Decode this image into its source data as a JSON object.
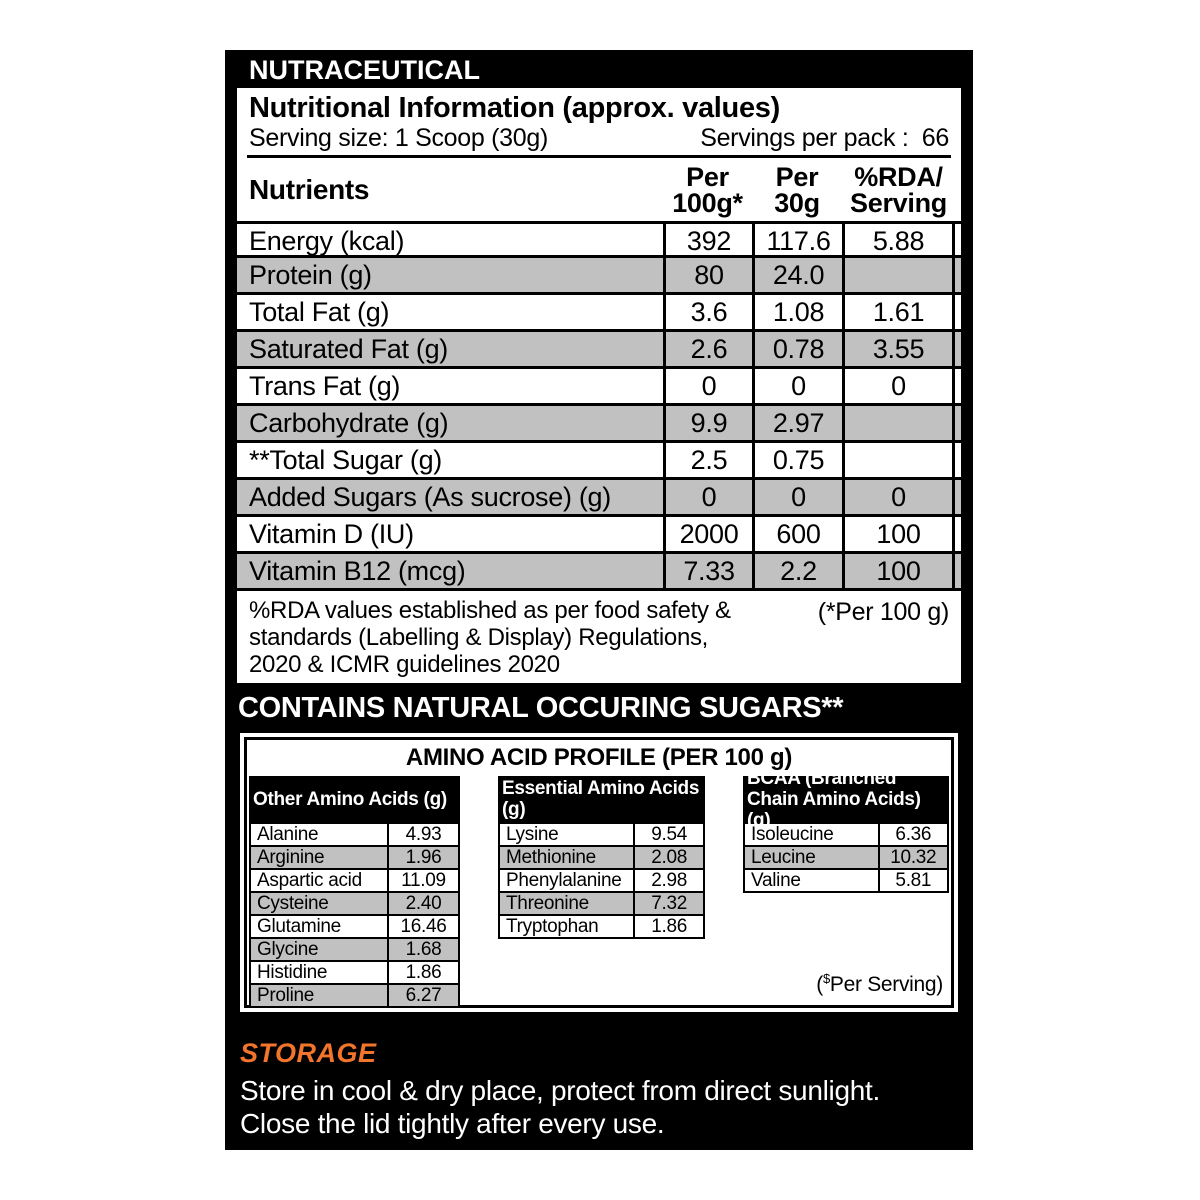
{
  "colors": {
    "accent_orange": "#F2752B",
    "row_gray": "#C1C1C1",
    "label_bg": "#000000"
  },
  "label": {
    "brand": "NUTRACEUTICAL",
    "nutrition": {
      "title": "Nutritional Information (approx. values)",
      "serving_size": "Serving size: 1 Scoop (30g)",
      "servings_per_pack": "Servings per pack :  66",
      "columns": {
        "nutrients": "Nutrients",
        "per100": "Per\n100g*",
        "per30": "Per\n30g",
        "rda": "%RDA/\nServing"
      },
      "rows": [
        {
          "name": "Energy (kcal)",
          "per100": "392",
          "per30": "117.6",
          "rda": "5.88"
        },
        {
          "name": "Protein (g)",
          "per100": "80",
          "per30": "24.0",
          "rda": ""
        },
        {
          "name": "Total Fat (g)",
          "per100": "3.6",
          "per30": "1.08",
          "rda": "1.61"
        },
        {
          "name": "Saturated Fat (g)",
          "per100": "2.6",
          "per30": "0.78",
          "rda": "3.55"
        },
        {
          "name": "Trans Fat (g)",
          "per100": "0",
          "per30": "0",
          "rda": "0"
        },
        {
          "name": "Carbohydrate (g)",
          "per100": "9.9",
          "per30": "2.97",
          "rda": ""
        },
        {
          "name": "**Total Sugar (g)",
          "per100": "2.5",
          "per30": "0.75",
          "rda": ""
        },
        {
          "name": "Added Sugars (As sucrose) (g)",
          "per100": "0",
          "per30": "0",
          "rda": "0"
        },
        {
          "name": "Vitamin D (IU)",
          "per100": "2000",
          "per30": "600",
          "rda": "100"
        },
        {
          "name": "Vitamin B12 (mcg)",
          "per100": "7.33",
          "per30": "2.2",
          "rda": "100"
        }
      ],
      "footnote": "%RDA values established as per food safety &\nstandards (Labelling & Display) Regulations,\n2020 & ICMR guidelines 2020",
      "footnote_right": "(*Per 100 g)"
    },
    "banner": "CONTAINS NATURAL OCCURING SUGARS**",
    "amino": {
      "title": "AMINO ACID PROFILE (PER 100 g)",
      "groups": [
        {
          "header": "Other Amino Acids (g)",
          "rows": [
            [
              "Alanine",
              "4.93"
            ],
            [
              "Arginine",
              "1.96"
            ],
            [
              "Aspartic acid",
              "11.09"
            ],
            [
              "Cysteine",
              "2.40"
            ],
            [
              "Glutamine",
              "16.46"
            ],
            [
              "Glycine",
              "1.68"
            ],
            [
              "Histidine",
              "1.86"
            ],
            [
              "Proline",
              "6.27"
            ]
          ]
        },
        {
          "header": "Essential Amino Acids (g)",
          "rows": [
            [
              "Lysine",
              "9.54"
            ],
            [
              "Methionine",
              "2.08"
            ],
            [
              "Phenylalanine",
              "2.98"
            ],
            [
              "Threonine",
              "7.32"
            ],
            [
              "Tryptophan",
              "1.86"
            ]
          ]
        },
        {
          "header": "BCAA (Branched Chain Amino Acids) (g)",
          "rows": [
            [
              "Isoleucine",
              "6.36"
            ],
            [
              "Leucine",
              "10.32"
            ],
            [
              "Valine",
              "5.81"
            ]
          ]
        }
      ],
      "per_serving_open": "(",
      "per_serving_sup": "$",
      "per_serving_rest": "Per Serving)"
    },
    "storage": {
      "heading": "STORAGE",
      "body": "Store in cool & dry place, protect from direct sunlight.\nClose the lid tightly after every use."
    }
  }
}
